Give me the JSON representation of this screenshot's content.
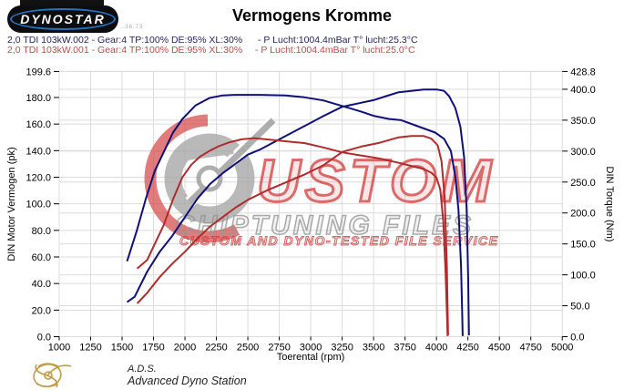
{
  "logo": {
    "text": "DYNOSTAR",
    "sub_text": "..36.73"
  },
  "title": "Vermogens Kromme",
  "runs": [
    {
      "name": "2,0 TDI 103kW.002 - Gear:4 TP:100% DE:95% XL:30%",
      "ambient": "- P Lucht:1004.4mBar T° lucht:25.3°C",
      "color": "#26265e"
    },
    {
      "name": "2,0 TDI 103kW.001 - Gear:4 TP:100% DE:95% XL:30%",
      "ambient": "- P Lucht:1004.4mBar T° lucht:25.0°C",
      "color": "#c24b4b"
    }
  ],
  "watermark": {
    "word1": "USTOM",
    "word2": "CHIPTUNING FILES",
    "word3": "CUSTOM AND DYNO-TESTED FILE SERVICE",
    "red": "#d23c3c",
    "gray": "#a0a0a0"
  },
  "footer": {
    "abbr": "A.D.S.",
    "name": "Advanced Dyno Station",
    "gold": "#b99330"
  },
  "colors": {
    "run_blue": "#10107a",
    "run_red": "#b02c2c",
    "grid": "#dcdcdc",
    "axis_text": "#000000"
  },
  "chart_data": {
    "type": "line",
    "title": "Vermogens Kromme",
    "xlabel": "Toerental (rpm)",
    "ylabel_left": "DIN Motor Vermogen (pk)",
    "ylabel_right": "DIN Torque (Nm)",
    "grid": true,
    "x_range": [
      1000,
      5000
    ],
    "left_range": [
      0,
      199.6
    ],
    "right_range": [
      0,
      428.8
    ],
    "x_ticks": [
      1000,
      1250,
      1500,
      1750,
      2000,
      2250,
      2500,
      2750,
      3000,
      3250,
      3500,
      3750,
      4000,
      4250,
      4500,
      4750,
      5000
    ],
    "left_ticks": [
      0,
      20,
      40,
      60,
      80,
      100,
      120,
      140,
      160,
      180,
      199.6
    ],
    "right_ticks": [
      0,
      50,
      100,
      150,
      200,
      250,
      300,
      350,
      400,
      428.8
    ],
    "series": [
      {
        "id": "power-002",
        "name": "2,0 TDI 103kW.002 vermogen",
        "axis": "left",
        "unit": "pk",
        "color": "#10107a",
        "peak": {
          "rpm": 3950,
          "value": 186
        },
        "points": [
          [
            1540,
            26
          ],
          [
            1600,
            30
          ],
          [
            1700,
            49
          ],
          [
            1800,
            64
          ],
          [
            1900,
            76
          ],
          [
            2000,
            90
          ],
          [
            2100,
            104
          ],
          [
            2200,
            115
          ],
          [
            2300,
            123
          ],
          [
            2400,
            130
          ],
          [
            2500,
            137
          ],
          [
            2600,
            141
          ],
          [
            2700,
            146
          ],
          [
            2800,
            151
          ],
          [
            2900,
            156
          ],
          [
            3000,
            161
          ],
          [
            3100,
            166
          ],
          [
            3250,
            173
          ],
          [
            3400,
            176
          ],
          [
            3500,
            178
          ],
          [
            3600,
            181
          ],
          [
            3700,
            184
          ],
          [
            3800,
            185
          ],
          [
            3900,
            186
          ],
          [
            4000,
            186
          ],
          [
            4060,
            185
          ],
          [
            4100,
            181
          ],
          [
            4150,
            172
          ],
          [
            4190,
            158
          ],
          [
            4220,
            135
          ],
          [
            4240,
            95
          ],
          [
            4252,
            45
          ],
          [
            4258,
            1
          ]
        ]
      },
      {
        "id": "torque-002",
        "name": "2,0 TDI 103kW.002 koppel",
        "axis": "right",
        "unit": "Nm",
        "color": "#10107a",
        "peak": {
          "rpm": 2500,
          "value": 391
        },
        "points": [
          [
            1540,
            122
          ],
          [
            1615,
            170
          ],
          [
            1690,
            224
          ],
          [
            1760,
            268
          ],
          [
            1835,
            300
          ],
          [
            1905,
            330
          ],
          [
            1980,
            352
          ],
          [
            2085,
            374
          ],
          [
            2195,
            386
          ],
          [
            2300,
            390
          ],
          [
            2400,
            391
          ],
          [
            2600,
            391
          ],
          [
            2800,
            390
          ],
          [
            2950,
            387
          ],
          [
            3100,
            382
          ],
          [
            3250,
            373
          ],
          [
            3400,
            364
          ],
          [
            3500,
            357
          ],
          [
            3620,
            352
          ],
          [
            3720,
            350
          ],
          [
            3840,
            341
          ],
          [
            3990,
            330
          ],
          [
            4060,
            320
          ],
          [
            4115,
            300
          ],
          [
            4150,
            258
          ],
          [
            4175,
            205
          ],
          [
            4195,
            115
          ],
          [
            4205,
            30
          ],
          [
            4208,
            1
          ]
        ]
      },
      {
        "id": "power-001",
        "name": "2,0 TDI 103kW.001 vermogen",
        "axis": "left",
        "unit": "pk",
        "color": "#b02c2c",
        "peak": {
          "rpm": 3850,
          "value": 151
        },
        "points": [
          [
            1620,
            25
          ],
          [
            1700,
            33
          ],
          [
            1800,
            45
          ],
          [
            1900,
            55
          ],
          [
            2000,
            64
          ],
          [
            2100,
            74
          ],
          [
            2200,
            83
          ],
          [
            2300,
            90
          ],
          [
            2400,
            97
          ],
          [
            2500,
            103
          ],
          [
            2650,
            110
          ],
          [
            2800,
            116
          ],
          [
            2950,
            122
          ],
          [
            3100,
            129
          ],
          [
            3250,
            139
          ],
          [
            3400,
            143
          ],
          [
            3550,
            146
          ],
          [
            3700,
            150
          ],
          [
            3800,
            151
          ],
          [
            3900,
            151
          ],
          [
            3960,
            149
          ],
          [
            4010,
            144
          ],
          [
            4040,
            132
          ],
          [
            4065,
            105
          ],
          [
            4082,
            55
          ],
          [
            4092,
            1
          ]
        ]
      },
      {
        "id": "torque-001",
        "name": "2,0 TDI 103kW.001 koppel",
        "axis": "right",
        "unit": "Nm",
        "color": "#b02c2c",
        "peak": {
          "rpm": 2550,
          "value": 321
        },
        "points": [
          [
            1620,
            110
          ],
          [
            1700,
            124
          ],
          [
            1760,
            150
          ],
          [
            1830,
            180
          ],
          [
            1905,
            222
          ],
          [
            1980,
            258
          ],
          [
            2050,
            278
          ],
          [
            2120,
            291
          ],
          [
            2200,
            301
          ],
          [
            2270,
            308
          ],
          [
            2350,
            314
          ],
          [
            2450,
            319
          ],
          [
            2550,
            321
          ],
          [
            2700,
            318
          ],
          [
            2850,
            315
          ],
          [
            2950,
            313
          ],
          [
            3100,
            306
          ],
          [
            3250,
            298
          ],
          [
            3400,
            293
          ],
          [
            3550,
            288
          ],
          [
            3700,
            281
          ],
          [
            3800,
            276
          ],
          [
            3900,
            271
          ],
          [
            3960,
            265
          ],
          [
            4000,
            257
          ],
          [
            4030,
            238
          ],
          [
            4055,
            185
          ],
          [
            4072,
            105
          ],
          [
            4085,
            25
          ],
          [
            4088,
            1
          ]
        ]
      }
    ]
  }
}
